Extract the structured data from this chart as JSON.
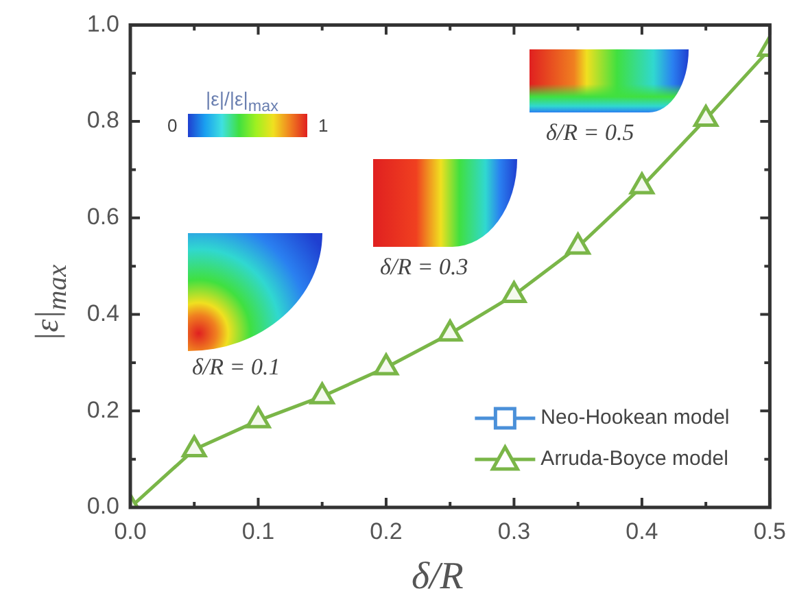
{
  "chart_data": {
    "type": "line",
    "xlabel": "δ/R",
    "ylabel": "|ε|$_{max}$",
    "x": [
      0,
      0.05,
      0.1,
      0.15,
      0.2,
      0.25,
      0.3,
      0.35,
      0.4,
      0.45,
      0.5
    ],
    "series": [
      {
        "name": "Neo-Hookean model",
        "color": "#4a90d9",
        "marker": "square",
        "values": [
          null,
          null,
          null,
          null,
          null,
          null,
          null,
          null,
          null,
          null,
          null
        ]
      },
      {
        "name": "Arruda-Boyce model",
        "color": "#7ab648",
        "marker": "triangle",
        "values": [
          0,
          0.12,
          0.18,
          0.23,
          0.29,
          0.36,
          0.44,
          0.54,
          0.665,
          0.805,
          0.95
        ]
      }
    ],
    "xlim": [
      0,
      0.5
    ],
    "ylim": [
      0,
      1
    ],
    "xticks": [
      {
        "value": 0,
        "label": "0.0"
      },
      {
        "value": 0.05,
        "label": null
      },
      0.1,
      {
        "value": 0.15,
        "label": null
      },
      0.2,
      {
        "value": 0.25,
        "label": null
      },
      0.3,
      {
        "value": 0.35,
        "label": null
      },
      0.4,
      {
        "value": 0.45,
        "label": null
      },
      0.5
    ],
    "yticks": [
      {
        "value": 0,
        "label": "0.0"
      },
      {
        "value": 0.1,
        "label": null
      },
      0.2,
      {
        "value": 0.3,
        "label": null
      },
      0.4,
      {
        "value": 0.5,
        "label": null
      },
      0.6,
      {
        "value": 0.7,
        "label": null
      },
      0.8,
      {
        "value": 0.9,
        "label": null
      },
      {
        "value": 1,
        "label": "1.0"
      }
    ],
    "legend": "bottom right",
    "grid": false,
    "line_style": "solid",
    "annotations": [
      "|ε|/|ε|$_{max}$",
      "0",
      "1",
      "δ/R = 0.1",
      "δ/R = 0.3",
      "δ/R = 0.5"
    ]
  }
}
